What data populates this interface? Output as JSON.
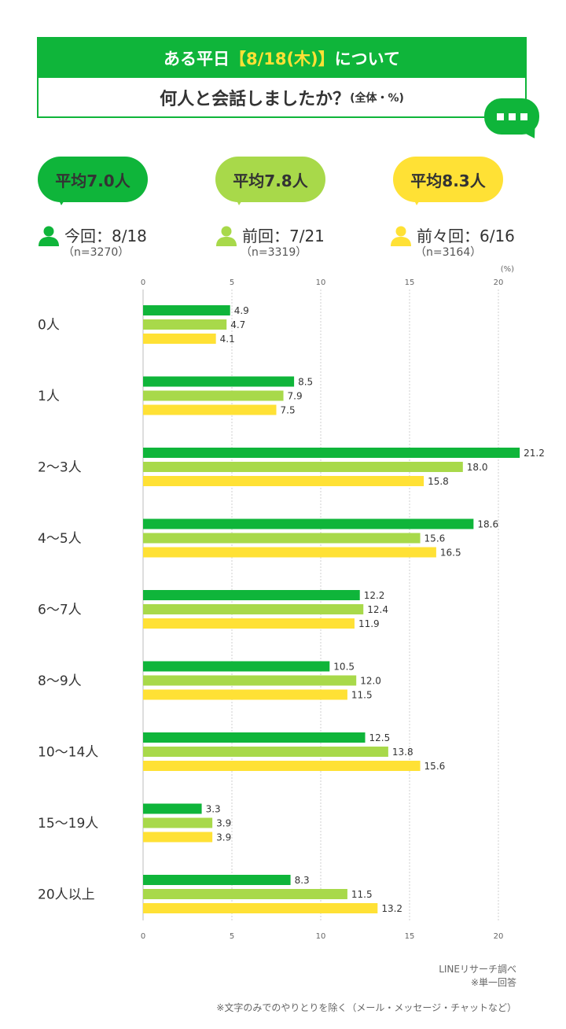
{
  "header": {
    "title_line1_pre": "ある平日",
    "title_line1_highlight": "【8/18(木)】",
    "title_line1_post": "について",
    "title_line2": "何人と会話しましたか？",
    "title_line2_sub": "(全体・%)"
  },
  "legend": [
    {
      "avg": "平均7.0人",
      "label": "今回：8/18",
      "n": "（n=3270）",
      "color": "#0fb53a",
      "avg_text_color": "#ffffff"
    },
    {
      "avg": "平均7.8人",
      "label": "前回：7/21",
      "n": "（n=3319）",
      "color": "#a8d94a",
      "avg_text_color": "#ffffff"
    },
    {
      "avg": "平均8.3人",
      "label": "前々回：6/16",
      "n": "（n=3164）",
      "color": "#ffe135",
      "avg_text_color": "#333333"
    }
  ],
  "chart_data": {
    "type": "bar",
    "orientation": "horizontal",
    "unit_label": "(%)",
    "xlim": [
      0,
      20
    ],
    "x_ticks": [
      0,
      5,
      10,
      15,
      20
    ],
    "grid": true,
    "categories": [
      "0人",
      "1人",
      "2〜3人",
      "4〜5人",
      "6〜7人",
      "8〜9人",
      "10〜14人",
      "15〜19人",
      "20人以上"
    ],
    "series": [
      {
        "name": "今回：8/18",
        "color": "#0fb53a",
        "values": [
          4.9,
          8.5,
          21.2,
          18.6,
          12.2,
          10.5,
          12.5,
          3.3,
          8.3
        ]
      },
      {
        "name": "前回：7/21",
        "color": "#a8d94a",
        "values": [
          4.7,
          7.9,
          18.0,
          15.6,
          12.4,
          12.0,
          13.8,
          3.9,
          11.5
        ]
      },
      {
        "name": "前々回：6/16",
        "color": "#ffe135",
        "values": [
          4.1,
          7.5,
          15.8,
          16.5,
          11.9,
          11.5,
          15.6,
          3.9,
          13.2
        ]
      }
    ]
  },
  "footer": {
    "source": "LINEリサーチ調べ",
    "note1": "※単一回答",
    "note2": "※文字のみでのやりとりを除く（メール・メッセージ・チャットなど）"
  }
}
